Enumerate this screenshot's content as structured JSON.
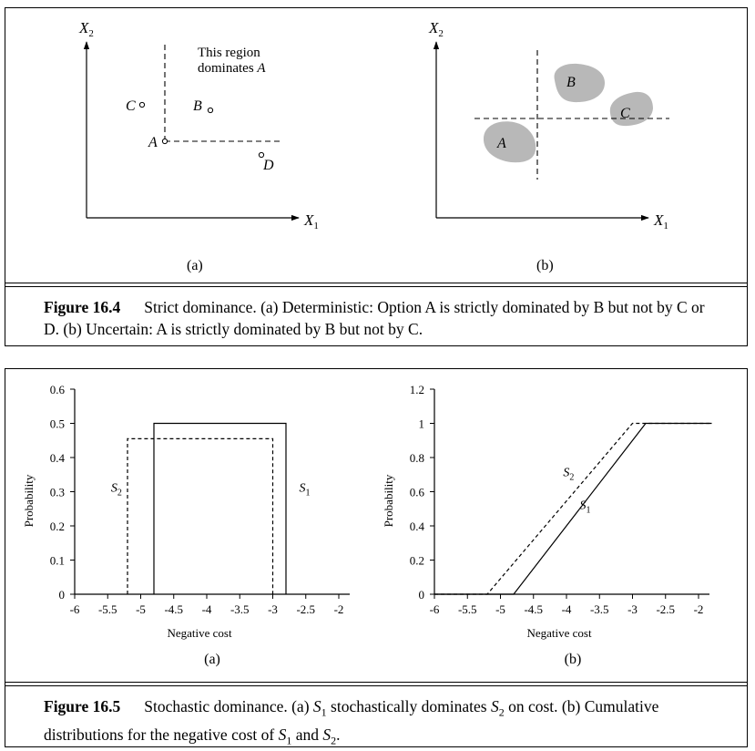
{
  "figure_16_4": {
    "number": "Figure 16.4",
    "caption": "Strict dominance. (a) Deterministic: Option A is strictly dominated by B but not by C or D. (b) Uncertain: A is strictly dominated by B but not by C.",
    "panel_a": {
      "label": "(a)",
      "x_axis": "X",
      "x_sub": "1",
      "y_axis": "X",
      "y_sub": "2",
      "region_line1": "This region",
      "region_line2": "dominates ",
      "region_line2_var": "A",
      "points": [
        {
          "name": "A",
          "x": 1.0,
          "y": 1.0
        },
        {
          "name": "B",
          "x": 1.6,
          "y": 1.5
        },
        {
          "name": "C",
          "x": 0.6,
          "y": 1.55
        },
        {
          "name": "D",
          "x": 2.3,
          "y": 0.8
        }
      ]
    },
    "panel_b": {
      "label": "(b)",
      "x_axis": "X",
      "x_sub": "1",
      "y_axis": "X",
      "y_sub": "2",
      "blobs": [
        "A",
        "B",
        "C"
      ],
      "blob_color": "#b8b8b8"
    }
  },
  "figure_16_5": {
    "number": "Figure 16.5",
    "caption_parts": [
      "Stochastic dominance. (a) ",
      "S",
      "1",
      " stochastically dominates ",
      "S",
      "2",
      " on cost. (b) Cumulative distributions for the negative cost of ",
      "S",
      "1",
      " and ",
      "S",
      "2",
      "."
    ]
  },
  "chart_data": [
    {
      "type": "line",
      "panel": "(a)",
      "xlabel": "Negative cost",
      "ylabel": "Probability",
      "xlim": [
        -6,
        -2
      ],
      "ylim": [
        0,
        0.6
      ],
      "xticks": [
        "-6",
        "-5.5",
        "-5",
        "-4.5",
        "-4",
        "-3.5",
        "-3",
        "-2.5",
        "-2"
      ],
      "yticks": [
        "0",
        "0.1",
        "0.2",
        "0.3",
        "0.4",
        "0.5",
        "0.6"
      ],
      "series": [
        {
          "name": "S1",
          "style": "solid",
          "points": [
            [
              -4.8,
              0
            ],
            [
              -4.8,
              0.5
            ],
            [
              -2.8,
              0.5
            ],
            [
              -2.8,
              0
            ]
          ]
        },
        {
          "name": "S2",
          "style": "dashed",
          "points": [
            [
              -5.2,
              0
            ],
            [
              -5.2,
              0.455
            ],
            [
              -3.0,
              0.455
            ],
            [
              -3.0,
              0
            ]
          ]
        }
      ],
      "labels": [
        {
          "text": "S",
          "sub": "2",
          "x": -5.45,
          "y": 0.3
        },
        {
          "text": "S",
          "sub": "1",
          "x": -2.6,
          "y": 0.3
        }
      ]
    },
    {
      "type": "line",
      "panel": "(b)",
      "xlabel": "Negative cost",
      "ylabel": "Probability",
      "xlim": [
        -6,
        -2
      ],
      "ylim": [
        0,
        1.2
      ],
      "xticks": [
        "-6",
        "-5.5",
        "-5",
        "-4.5",
        "-4",
        "-3.5",
        "-3",
        "-2.5",
        "-2"
      ],
      "yticks": [
        "0",
        "0.2",
        "0.4",
        "0.6",
        "0.8",
        "1",
        "1.2"
      ],
      "series": [
        {
          "name": "S1",
          "style": "solid",
          "points": [
            [
              -6,
              0
            ],
            [
              -4.8,
              0
            ],
            [
              -2.8,
              1
            ],
            [
              -1.8,
              1
            ]
          ]
        },
        {
          "name": "S2",
          "style": "dashed",
          "points": [
            [
              -6,
              0
            ],
            [
              -5.2,
              0
            ],
            [
              -3.0,
              1
            ],
            [
              -1.8,
              1
            ]
          ]
        }
      ],
      "labels": [
        {
          "text": "S",
          "sub": "2",
          "x": -4.05,
          "y": 0.69
        },
        {
          "text": "S",
          "sub": "1",
          "x": -3.8,
          "y": 0.5
        }
      ]
    }
  ]
}
